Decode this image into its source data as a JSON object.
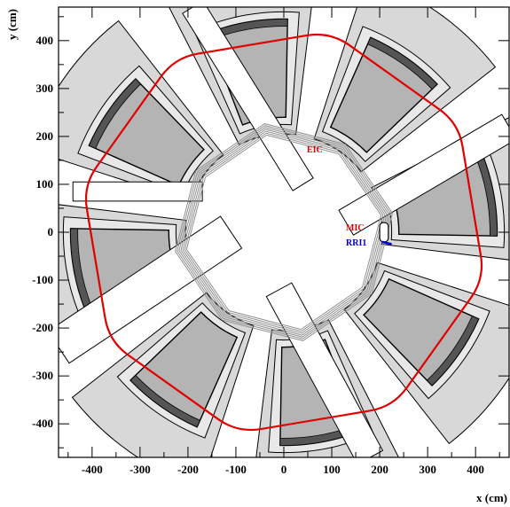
{
  "axes": {
    "xlabel": "x (cm)",
    "ylabel": "y (cm)",
    "xlim": [
      -470,
      470
    ],
    "ylim": [
      -470,
      470
    ],
    "xticks": [
      -400,
      -300,
      -200,
      -100,
      0,
      100,
      200,
      300,
      400
    ],
    "yticks": [
      -400,
      -300,
      -200,
      -100,
      0,
      100,
      200,
      300,
      400
    ]
  },
  "annotations": {
    "eic": "EIC",
    "mic": "MIC",
    "rri1": "RRI1"
  },
  "colors": {
    "eic": "#e00000",
    "mic": "#e00000",
    "rri1": "#0000cc",
    "magnet_fill": "#b4b4b4",
    "magnet_outer": "#d8d8d8",
    "beam_pipe": "#909090"
  }
}
